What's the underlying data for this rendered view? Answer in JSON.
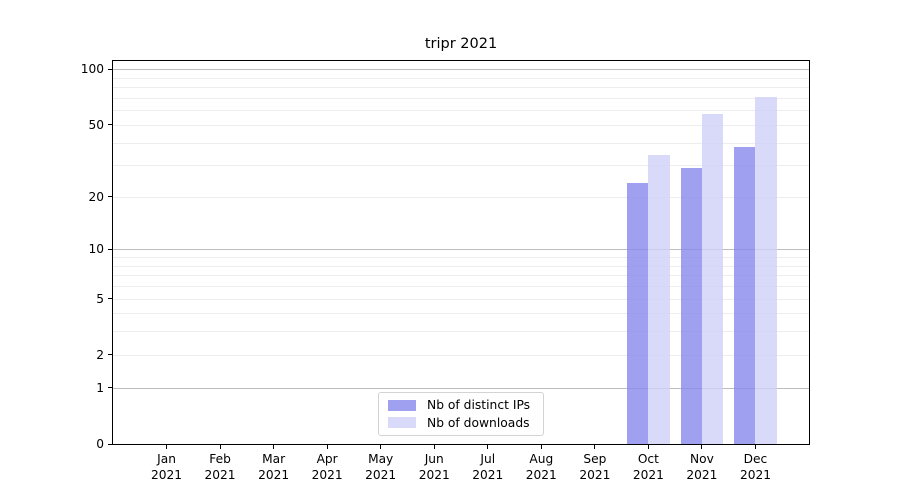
{
  "chart_data": {
    "type": "bar",
    "title": "tripr 2021",
    "categories": [
      {
        "month": "Jan",
        "year": "2021"
      },
      {
        "month": "Feb",
        "year": "2021"
      },
      {
        "month": "Mar",
        "year": "2021"
      },
      {
        "month": "Apr",
        "year": "2021"
      },
      {
        "month": "May",
        "year": "2021"
      },
      {
        "month": "Jun",
        "year": "2021"
      },
      {
        "month": "Jul",
        "year": "2021"
      },
      {
        "month": "Aug",
        "year": "2021"
      },
      {
        "month": "Sep",
        "year": "2021"
      },
      {
        "month": "Oct",
        "year": "2021"
      },
      {
        "month": "Nov",
        "year": "2021"
      },
      {
        "month": "Dec",
        "year": "2021"
      }
    ],
    "series": [
      {
        "name": "Nb of distinct IPs",
        "key": "distinct-ips",
        "color": "#8888ee",
        "alpha": 0.8,
        "values": [
          0,
          0,
          0,
          0,
          0,
          0,
          0,
          0,
          0,
          24,
          29,
          38
        ]
      },
      {
        "name": "Nb of downloads",
        "key": "downloads",
        "color": "#d0d0f8",
        "alpha": 0.8,
        "values": [
          0,
          0,
          0,
          0,
          0,
          0,
          0,
          0,
          0,
          34,
          57,
          71
        ]
      }
    ],
    "yscale": "log1p",
    "ylim": [
      0,
      111
    ],
    "yticks": [
      0,
      1,
      2,
      5,
      10,
      20,
      50,
      100
    ],
    "major_gridlines": [
      1,
      10,
      100
    ],
    "minor_gridlines": [
      2,
      3,
      4,
      5,
      6,
      7,
      8,
      9,
      20,
      30,
      40,
      50,
      60,
      70,
      80,
      90
    ],
    "grid_colors": {
      "major": "#bdbdbd",
      "minor": "#ededed"
    },
    "axis_color": "#000000",
    "legend_position": "lower center",
    "grid": "horizontal"
  }
}
